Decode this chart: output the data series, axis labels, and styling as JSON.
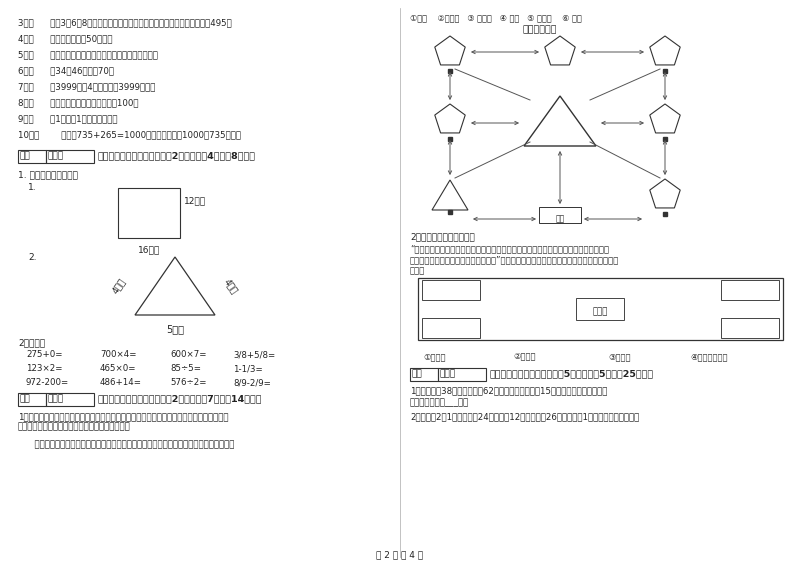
{
  "title": "",
  "background_color": "#ffffff",
  "page_number": "第 2 页 共 4 页",
  "left_column": {
    "items_3_10": [
      "3．（      ）用3、6、8这三个数字组成的最大三位数与最小三位数，它们相差495。",
      "4．（      ）一本故事书约50千克。",
      "5．（      ）所有的大月都是单月，所有的小月都是双月。",
      "6．（      ）34与46的和是70。",
      "7．（      ）3999克与4千克相比，3999克重。",
      "8．（      ）两个面积单位之间的进率是100。",
      "9．（      ）1吞铁与1吞棉花一样重。",
      "10．（        ）根据735+265=1000，可以直接写出1000－735的差。"
    ],
    "section4_title": "四、看清题目，细心计算（共2小题，每题4分，共8分）。",
    "section4_sub": "1. 求下面图形的周长。",
    "rect_label_right": "12厘米",
    "rect_label_bottom": "16厘米",
    "triangle_label_left": "4分米",
    "triangle_label_right": "4分米",
    "triangle_label_bottom": "5分米",
    "oral_calc_title": "2．口算：",
    "oral_calc": [
      [
        "275+0=",
        "700×4=",
        "600×7=",
        "3/8+5/8="
      ],
      [
        "123×2=",
        "465×0=",
        "85÷5=",
        "1-1/3="
      ],
      [
        "972-200=",
        "486+14=",
        "576÷2=",
        "8/9-2/9="
      ]
    ],
    "section5_title": "五、认真思考，综合能力（共2小题，每题7分，共14分）。",
    "section5_q1": "1、走进动物园大门，正北面是狮子山和猴猫馆，狮子山的东侧是飞禽馆，西侧是椎园，大象\n馆和鱼馆的场地分别在动物园的东北角和西北角。",
    "section5_q1b": "      根据小强的描述，请你把这些动物场馆所在的位置，在动物园的导游图上用序号表示出来"
  },
  "right_column": {
    "zoo_legend": "①狮山    ②猴猫馆   ③ 飞禽馆   ④ 椎园   ⑤ 大象馆    ⑥ 鱼馆",
    "zoo_map_title": "动物园导游图",
    "section2_title": "2、仔细观察，认真填空。",
    "section2_text1": "“走进服装城大门，正北面是假山石和童装区，假山的东面是中老年服装区，假山的西北",
    "section2_text2": "边是男装区，男装区的南边是女装区。”。根据以上的描述请你把服装城的序号标在适当的位",
    "section2_text3": "置上。",
    "clothing_label": "假山石",
    "clothing_zones": [
      "①童装区",
      "②男装区",
      "③女装区",
      "④中老年服装区"
    ],
    "section6_title": "六、活用知识，解决问题（共5小题，每题5分，共25分）。",
    "section6_q1": "1．一个排球38元，一个篮球62元。如果每种球各一15个，一共需要花多少錢？",
    "section6_q1ans": "答：一共需要花___元。",
    "section6_q2": "2．学校买2符1乓球，每符24盒，每盒12个，每盒剨26元，学校买1乓球一共花了多少錢？"
  },
  "score_box_label": "得分",
  "reviewer_label": "评卷人"
}
